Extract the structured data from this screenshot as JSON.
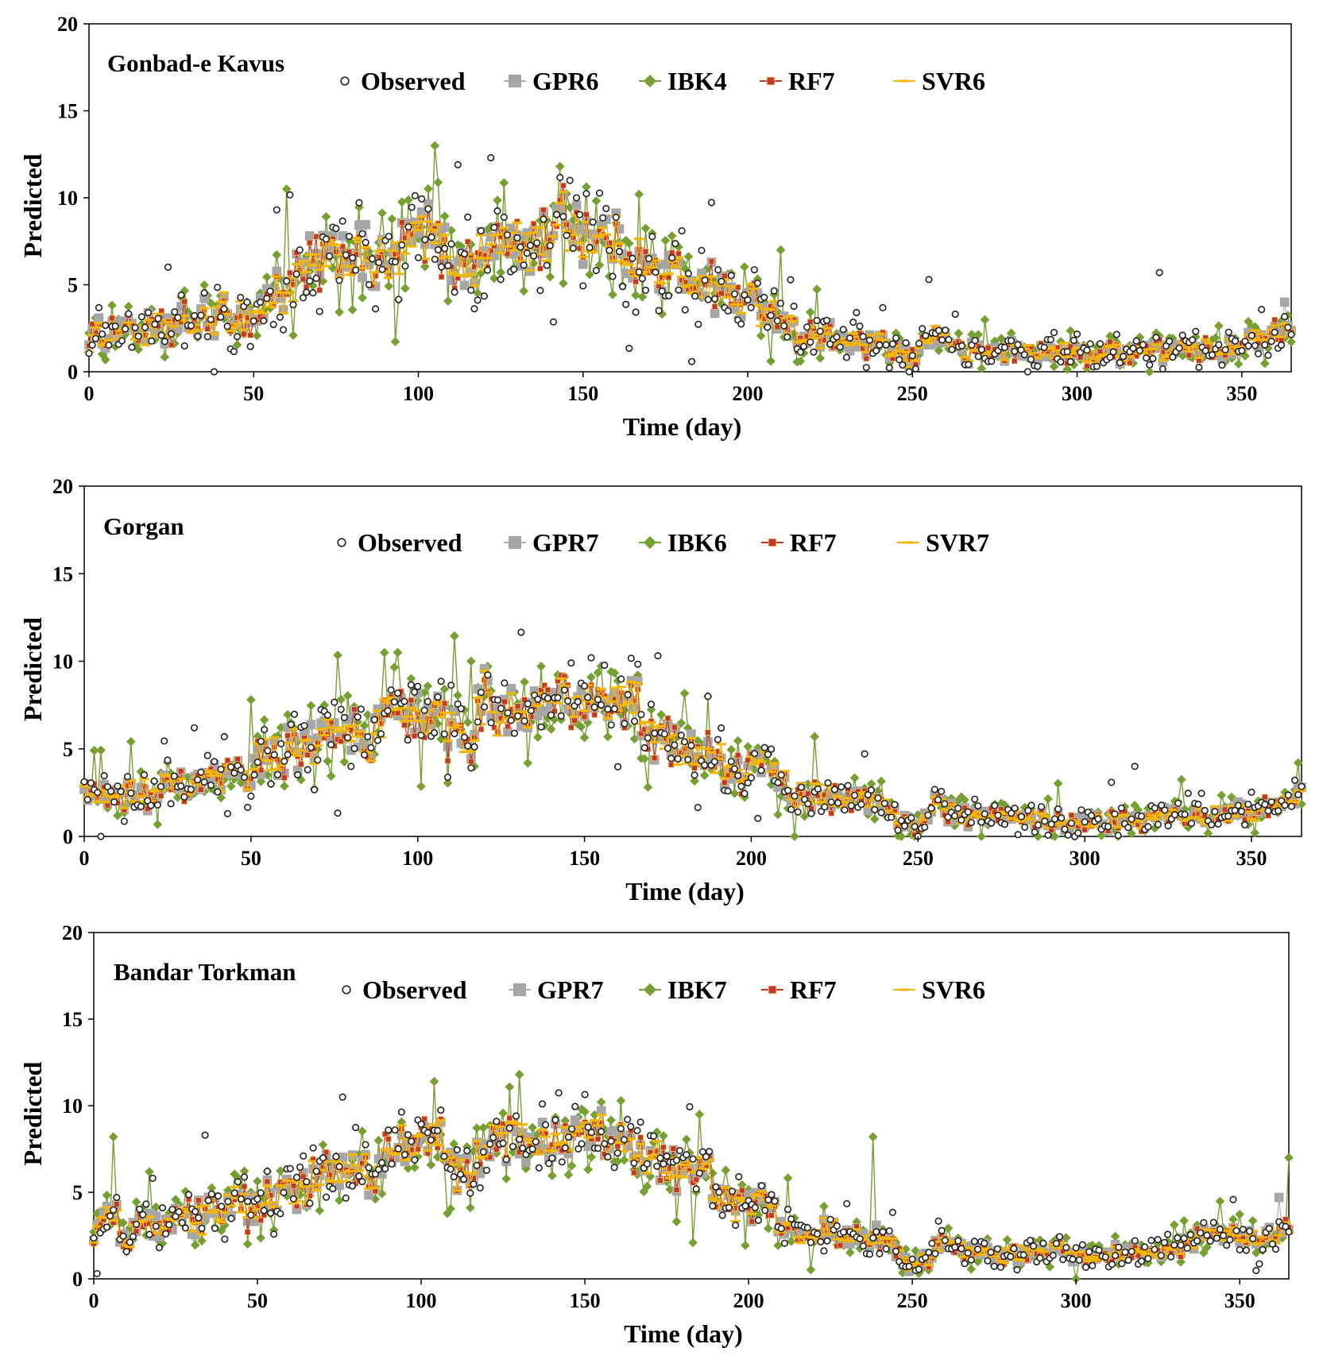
{
  "legend_colors": {
    "Observed": "#ffffff",
    "GPR": "#a6a6a6",
    "IBK": "#77a033",
    "RF": "#c0392b",
    "SVR": "#f2b705"
  },
  "chart_data": [
    {
      "type": "line",
      "station": "Gonbad-e Kavus",
      "xlabel": "Time (day)",
      "ylabel": "Predicted",
      "xlim": [
        0,
        365
      ],
      "ylim": [
        0,
        20
      ],
      "xticks": [
        0,
        50,
        100,
        150,
        200,
        250,
        300,
        350
      ],
      "yticks": [
        0,
        5,
        10,
        15,
        20
      ],
      "grid": false,
      "legend_position": "top",
      "legend": [
        "Observed",
        "GPR6",
        "IBK4",
        "RF7",
        "SVR6"
      ],
      "profile": [
        [
          0,
          2.0
        ],
        [
          10,
          2.5
        ],
        [
          20,
          2.2
        ],
        [
          30,
          2.8
        ],
        [
          40,
          3.3
        ],
        [
          50,
          3.2
        ],
        [
          55,
          4.2
        ],
        [
          60,
          5.0
        ],
        [
          70,
          6.3
        ],
        [
          80,
          6.8
        ],
        [
          90,
          6.0
        ],
        [
          100,
          8.0
        ],
        [
          105,
          7.8
        ],
        [
          110,
          6.5
        ],
        [
          120,
          6.3
        ],
        [
          125,
          8.0
        ],
        [
          130,
          7.0
        ],
        [
          140,
          8.0
        ],
        [
          145,
          8.8
        ],
        [
          150,
          8.0
        ],
        [
          160,
          7.2
        ],
        [
          170,
          5.8
        ],
        [
          180,
          5.5
        ],
        [
          190,
          4.8
        ],
        [
          200,
          4.0
        ],
        [
          210,
          3.2
        ],
        [
          215,
          2.2
        ],
        [
          230,
          1.7
        ],
        [
          240,
          1.5
        ],
        [
          245,
          1.2
        ],
        [
          250,
          0.5
        ],
        [
          255,
          2.2
        ],
        [
          260,
          2.0
        ],
        [
          265,
          1.0
        ],
        [
          280,
          1.2
        ],
        [
          300,
          1.0
        ],
        [
          320,
          1.2
        ],
        [
          340,
          1.3
        ],
        [
          355,
          1.8
        ],
        [
          365,
          2.8
        ]
      ],
      "amplitude": [
        [
          0,
          1.2
        ],
        [
          50,
          1.8
        ],
        [
          60,
          2.5
        ],
        [
          150,
          2.5
        ],
        [
          200,
          1.8
        ],
        [
          220,
          1.2
        ],
        [
          250,
          0.9
        ],
        [
          365,
          0.9
        ]
      ],
      "annotations": [
        {
          "x": 60,
          "y": 10.5,
          "series": "IBK4"
        },
        {
          "x": 112,
          "y": 11.9,
          "series": "Observed"
        },
        {
          "x": 122,
          "y": 12.3,
          "series": "Observed"
        },
        {
          "x": 143,
          "y": 11.8,
          "series": "IBK4"
        },
        {
          "x": 146,
          "y": 11.0,
          "series": "Observed"
        },
        {
          "x": 167,
          "y": 10.2,
          "series": "IBK4"
        },
        {
          "x": 210,
          "y": 7.0,
          "series": "IBK4"
        },
        {
          "x": 255,
          "y": 5.3,
          "series": "Observed"
        },
        {
          "x": 325,
          "y": 5.7,
          "series": "Observed"
        },
        {
          "x": 363,
          "y": 4.0,
          "series": "GPR6"
        }
      ]
    },
    {
      "type": "line",
      "station": "Gorgan",
      "xlabel": "Time (day)",
      "ylabel": "Predicted",
      "xlim": [
        0,
        365
      ],
      "ylim": [
        0,
        20
      ],
      "xticks": [
        0,
        50,
        100,
        150,
        200,
        250,
        300,
        350
      ],
      "yticks": [
        0,
        5,
        10,
        15,
        20
      ],
      "grid": false,
      "legend_position": "top",
      "legend": [
        "Observed",
        "GPR7",
        "IBK6",
        "RF7",
        "SVR7"
      ],
      "profile": [
        [
          0,
          2.5
        ],
        [
          10,
          2.3
        ],
        [
          20,
          2.5
        ],
        [
          30,
          2.8
        ],
        [
          40,
          3.2
        ],
        [
          50,
          3.5
        ],
        [
          55,
          5.2
        ],
        [
          60,
          4.8
        ],
        [
          70,
          5.5
        ],
        [
          80,
          6.0
        ],
        [
          85,
          5.0
        ],
        [
          90,
          7.0
        ],
        [
          100,
          7.2
        ],
        [
          110,
          5.8
        ],
        [
          115,
          5.5
        ],
        [
          120,
          8.2
        ],
        [
          130,
          6.3
        ],
        [
          140,
          7.5
        ],
        [
          150,
          7.8
        ],
        [
          160,
          7.5
        ],
        [
          165,
          7.8
        ],
        [
          170,
          5.8
        ],
        [
          180,
          5.2
        ],
        [
          188,
          4.8
        ],
        [
          195,
          3.0
        ],
        [
          200,
          4.2
        ],
        [
          205,
          4.5
        ],
        [
          210,
          3.0
        ],
        [
          215,
          2.2
        ],
        [
          230,
          2.2
        ],
        [
          240,
          2.0
        ],
        [
          245,
          1.0
        ],
        [
          250,
          0.6
        ],
        [
          255,
          1.8
        ],
        [
          265,
          1.0
        ],
        [
          280,
          1.0
        ],
        [
          300,
          0.9
        ],
        [
          320,
          1.0
        ],
        [
          340,
          1.2
        ],
        [
          355,
          1.6
        ],
        [
          365,
          2.4
        ]
      ],
      "amplitude": [
        [
          0,
          1.1
        ],
        [
          50,
          1.5
        ],
        [
          60,
          2.2
        ],
        [
          150,
          2.2
        ],
        [
          190,
          1.8
        ],
        [
          210,
          1.2
        ],
        [
          250,
          0.8
        ],
        [
          365,
          0.8
        ]
      ],
      "annotations": [
        {
          "x": 33,
          "y": 6.2,
          "series": "Observed"
        },
        {
          "x": 50,
          "y": 7.8,
          "series": "IBK6"
        },
        {
          "x": 90,
          "y": 10.5,
          "series": "IBK6"
        },
        {
          "x": 94,
          "y": 10.5,
          "series": "IBK6"
        },
        {
          "x": 116,
          "y": 10.0,
          "series": "IBK6"
        },
        {
          "x": 152,
          "y": 10.2,
          "series": "Observed"
        },
        {
          "x": 187,
          "y": 8.0,
          "series": "IBK6"
        },
        {
          "x": 219,
          "y": 5.7,
          "series": "IBK6"
        },
        {
          "x": 315,
          "y": 4.0,
          "series": "Observed"
        },
        {
          "x": 364,
          "y": 4.2,
          "series": "IBK6"
        }
      ]
    },
    {
      "type": "line",
      "station": "Bandar Torkman",
      "xlabel": "Time (day)",
      "ylabel": "Predicted",
      "xlim": [
        0,
        365
      ],
      "ylim": [
        0,
        20
      ],
      "xticks": [
        0,
        50,
        100,
        150,
        200,
        250,
        300,
        350
      ],
      "yticks": [
        0,
        5,
        10,
        15,
        20
      ],
      "grid": false,
      "legend_position": "top",
      "legend": [
        "Observed",
        "GPR7",
        "IBK7",
        "RF7",
        "SVR6"
      ],
      "profile": [
        [
          0,
          2.5
        ],
        [
          5,
          4.0
        ],
        [
          10,
          2.5
        ],
        [
          20,
          3.0
        ],
        [
          30,
          3.5
        ],
        [
          40,
          4.0
        ],
        [
          50,
          4.0
        ],
        [
          60,
          5.2
        ],
        [
          70,
          5.8
        ],
        [
          80,
          6.8
        ],
        [
          85,
          6.0
        ],
        [
          90,
          7.2
        ],
        [
          100,
          8.0
        ],
        [
          105,
          8.5
        ],
        [
          110,
          6.5
        ],
        [
          115,
          6.0
        ],
        [
          120,
          8.3
        ],
        [
          130,
          7.8
        ],
        [
          140,
          8.2
        ],
        [
          150,
          8.5
        ],
        [
          160,
          8.2
        ],
        [
          170,
          7.0
        ],
        [
          180,
          6.3
        ],
        [
          185,
          7.0
        ],
        [
          190,
          4.8
        ],
        [
          200,
          4.0
        ],
        [
          205,
          4.8
        ],
        [
          210,
          3.2
        ],
        [
          220,
          2.8
        ],
        [
          230,
          2.5
        ],
        [
          240,
          2.3
        ],
        [
          248,
          1.0
        ],
        [
          252,
          0.6
        ],
        [
          258,
          2.0
        ],
        [
          270,
          1.5
        ],
        [
          290,
          1.5
        ],
        [
          310,
          1.5
        ],
        [
          330,
          1.5
        ],
        [
          340,
          2.8
        ],
        [
          355,
          2.2
        ],
        [
          365,
          3.0
        ]
      ],
      "amplitude": [
        [
          0,
          1.2
        ],
        [
          60,
          1.8
        ],
        [
          150,
          1.8
        ],
        [
          190,
          1.6
        ],
        [
          210,
          1.2
        ],
        [
          250,
          0.8
        ],
        [
          365,
          0.8
        ]
      ],
      "annotations": [
        {
          "x": 6,
          "y": 8.2,
          "series": "IBK7"
        },
        {
          "x": 34,
          "y": 8.3,
          "series": "Observed"
        },
        {
          "x": 76,
          "y": 10.5,
          "series": "Observed"
        },
        {
          "x": 104,
          "y": 11.4,
          "series": "IBK7"
        },
        {
          "x": 130,
          "y": 11.8,
          "series": "IBK7"
        },
        {
          "x": 185,
          "y": 9.5,
          "series": "IBK7"
        },
        {
          "x": 238,
          "y": 8.2,
          "series": "IBK7"
        },
        {
          "x": 362,
          "y": 4.7,
          "series": "GPR7"
        },
        {
          "x": 365,
          "y": 7.0,
          "series": "IBK7"
        }
      ]
    }
  ]
}
